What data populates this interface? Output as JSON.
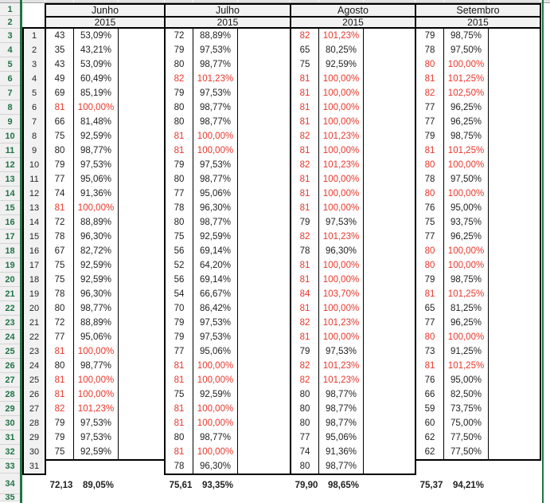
{
  "sheet": {
    "row_numbers": [
      1,
      2,
      3,
      4,
      5,
      6,
      7,
      8,
      9,
      10,
      11,
      12,
      13,
      14,
      15,
      16,
      17,
      18,
      19,
      20,
      21,
      22,
      23,
      24,
      25,
      26,
      27,
      28,
      29,
      30,
      31,
      32,
      33,
      34,
      35
    ],
    "day_numbers": [
      1,
      2,
      3,
      4,
      5,
      6,
      7,
      8,
      9,
      10,
      11,
      12,
      13,
      14,
      15,
      16,
      17,
      18,
      19,
      20,
      21,
      22,
      23,
      24,
      25,
      26,
      27,
      28,
      29,
      30,
      31
    ],
    "red_threshold_pct": 100,
    "colors": {
      "red_text": "#e8362a",
      "green_accent": "#217346",
      "header_fill": "#f2f2f2",
      "row_header_fill": "#f0f0f0"
    },
    "months": [
      {
        "name": "Junho",
        "year": "2015",
        "days": [
          [
            "43",
            "53,09%"
          ],
          [
            "35",
            "43,21%"
          ],
          [
            "43",
            "53,09%"
          ],
          [
            "49",
            "60,49%"
          ],
          [
            "69",
            "85,19%"
          ],
          [
            "81",
            "100,00%"
          ],
          [
            "66",
            "81,48%"
          ],
          [
            "75",
            "92,59%"
          ],
          [
            "80",
            "98,77%"
          ],
          [
            "79",
            "97,53%"
          ],
          [
            "77",
            "95,06%"
          ],
          [
            "74",
            "91,36%"
          ],
          [
            "81",
            "100,00%"
          ],
          [
            "72",
            "88,89%"
          ],
          [
            "78",
            "96,30%"
          ],
          [
            "67",
            "82,72%"
          ],
          [
            "75",
            "92,59%"
          ],
          [
            "75",
            "92,59%"
          ],
          [
            "78",
            "96,30%"
          ],
          [
            "80",
            "98,77%"
          ],
          [
            "72",
            "88,89%"
          ],
          [
            "77",
            "95,06%"
          ],
          [
            "81",
            "100,00%"
          ],
          [
            "80",
            "98,77%"
          ],
          [
            "81",
            "100,00%"
          ],
          [
            "81",
            "100,00%"
          ],
          [
            "82",
            "101,23%"
          ],
          [
            "79",
            "97,53%"
          ],
          [
            "79",
            "97,53%"
          ],
          [
            "75",
            "92,59%"
          ],
          null
        ],
        "total": [
          "72,13",
          "89,05%"
        ]
      },
      {
        "name": "Julho",
        "year": "2015",
        "days": [
          [
            "72",
            "88,89%"
          ],
          [
            "79",
            "97,53%"
          ],
          [
            "80",
            "98,77%"
          ],
          [
            "82",
            "101,23%"
          ],
          [
            "79",
            "97,53%"
          ],
          [
            "80",
            "98,77%"
          ],
          [
            "80",
            "98,77%"
          ],
          [
            "81",
            "100,00%"
          ],
          [
            "81",
            "100,00%"
          ],
          [
            "79",
            "97,53%"
          ],
          [
            "80",
            "98,77%"
          ],
          [
            "77",
            "95,06%"
          ],
          [
            "78",
            "96,30%"
          ],
          [
            "80",
            "98,77%"
          ],
          [
            "75",
            "92,59%"
          ],
          [
            "56",
            "69,14%"
          ],
          [
            "52",
            "64,20%"
          ],
          [
            "56",
            "69,14%"
          ],
          [
            "54",
            "66,67%"
          ],
          [
            "70",
            "86,42%"
          ],
          [
            "79",
            "97,53%"
          ],
          [
            "79",
            "97,53%"
          ],
          [
            "77",
            "95,06%"
          ],
          [
            "81",
            "100,00%"
          ],
          [
            "81",
            "100,00%"
          ],
          [
            "75",
            "92,59%"
          ],
          [
            "81",
            "100,00%"
          ],
          [
            "81",
            "100,00%"
          ],
          [
            "80",
            "98,77%"
          ],
          [
            "81",
            "100,00%"
          ],
          [
            "78",
            "96,30%"
          ]
        ],
        "total": [
          "75,61",
          "93,35%"
        ]
      },
      {
        "name": "Agosto",
        "year": "2015",
        "days": [
          [
            "82",
            "101,23%"
          ],
          [
            "65",
            "80,25%"
          ],
          [
            "75",
            "92,59%"
          ],
          [
            "81",
            "100,00%"
          ],
          [
            "81",
            "100,00%"
          ],
          [
            "81",
            "100,00%"
          ],
          [
            "81",
            "100,00%"
          ],
          [
            "82",
            "101,23%"
          ],
          [
            "81",
            "100,00%"
          ],
          [
            "82",
            "101,23%"
          ],
          [
            "81",
            "100,00%"
          ],
          [
            "81",
            "100,00%"
          ],
          [
            "81",
            "100,00%"
          ],
          [
            "79",
            "97,53%"
          ],
          [
            "82",
            "101,23%"
          ],
          [
            "78",
            "96,30%"
          ],
          [
            "81",
            "100,00%"
          ],
          [
            "81",
            "100,00%"
          ],
          [
            "84",
            "103,70%"
          ],
          [
            "81",
            "100,00%"
          ],
          [
            "82",
            "101,23%"
          ],
          [
            "81",
            "100,00%"
          ],
          [
            "79",
            "97,53%"
          ],
          [
            "82",
            "101,23%"
          ],
          [
            "82",
            "101,23%"
          ],
          [
            "80",
            "98,77%"
          ],
          [
            "80",
            "98,77%"
          ],
          [
            "80",
            "98,77%"
          ],
          [
            "77",
            "95,06%"
          ],
          [
            "74",
            "91,36%"
          ],
          [
            "80",
            "98,77%"
          ]
        ],
        "total": [
          "79,90",
          "98,65%"
        ]
      },
      {
        "name": "Setembro",
        "year": "2015",
        "days": [
          [
            "79",
            "98,75%"
          ],
          [
            "78",
            "97,50%"
          ],
          [
            "80",
            "100,00%"
          ],
          [
            "81",
            "101,25%"
          ],
          [
            "82",
            "102,50%"
          ],
          [
            "77",
            "96,25%"
          ],
          [
            "77",
            "96,25%"
          ],
          [
            "79",
            "98,75%"
          ],
          [
            "81",
            "101,25%"
          ],
          [
            "80",
            "100,00%"
          ],
          [
            "78",
            "97,50%"
          ],
          [
            "80",
            "100,00%"
          ],
          [
            "76",
            "95,00%"
          ],
          [
            "75",
            "93,75%"
          ],
          [
            "77",
            "96,25%"
          ],
          [
            "80",
            "100,00%"
          ],
          [
            "80",
            "100,00%"
          ],
          [
            "79",
            "98,75%"
          ],
          [
            "81",
            "101,25%"
          ],
          [
            "65",
            "81,25%"
          ],
          [
            "77",
            "96,25%"
          ],
          [
            "80",
            "100,00%"
          ],
          [
            "73",
            "91,25%"
          ],
          [
            "81",
            "101,25%"
          ],
          [
            "76",
            "95,00%"
          ],
          [
            "66",
            "82,50%"
          ],
          [
            "59",
            "73,75%"
          ],
          [
            "60",
            "75,00%"
          ],
          [
            "62",
            "77,50%"
          ],
          [
            "62",
            "77,50%"
          ],
          null
        ],
        "total": [
          "75,37",
          "94,21%"
        ]
      }
    ]
  }
}
